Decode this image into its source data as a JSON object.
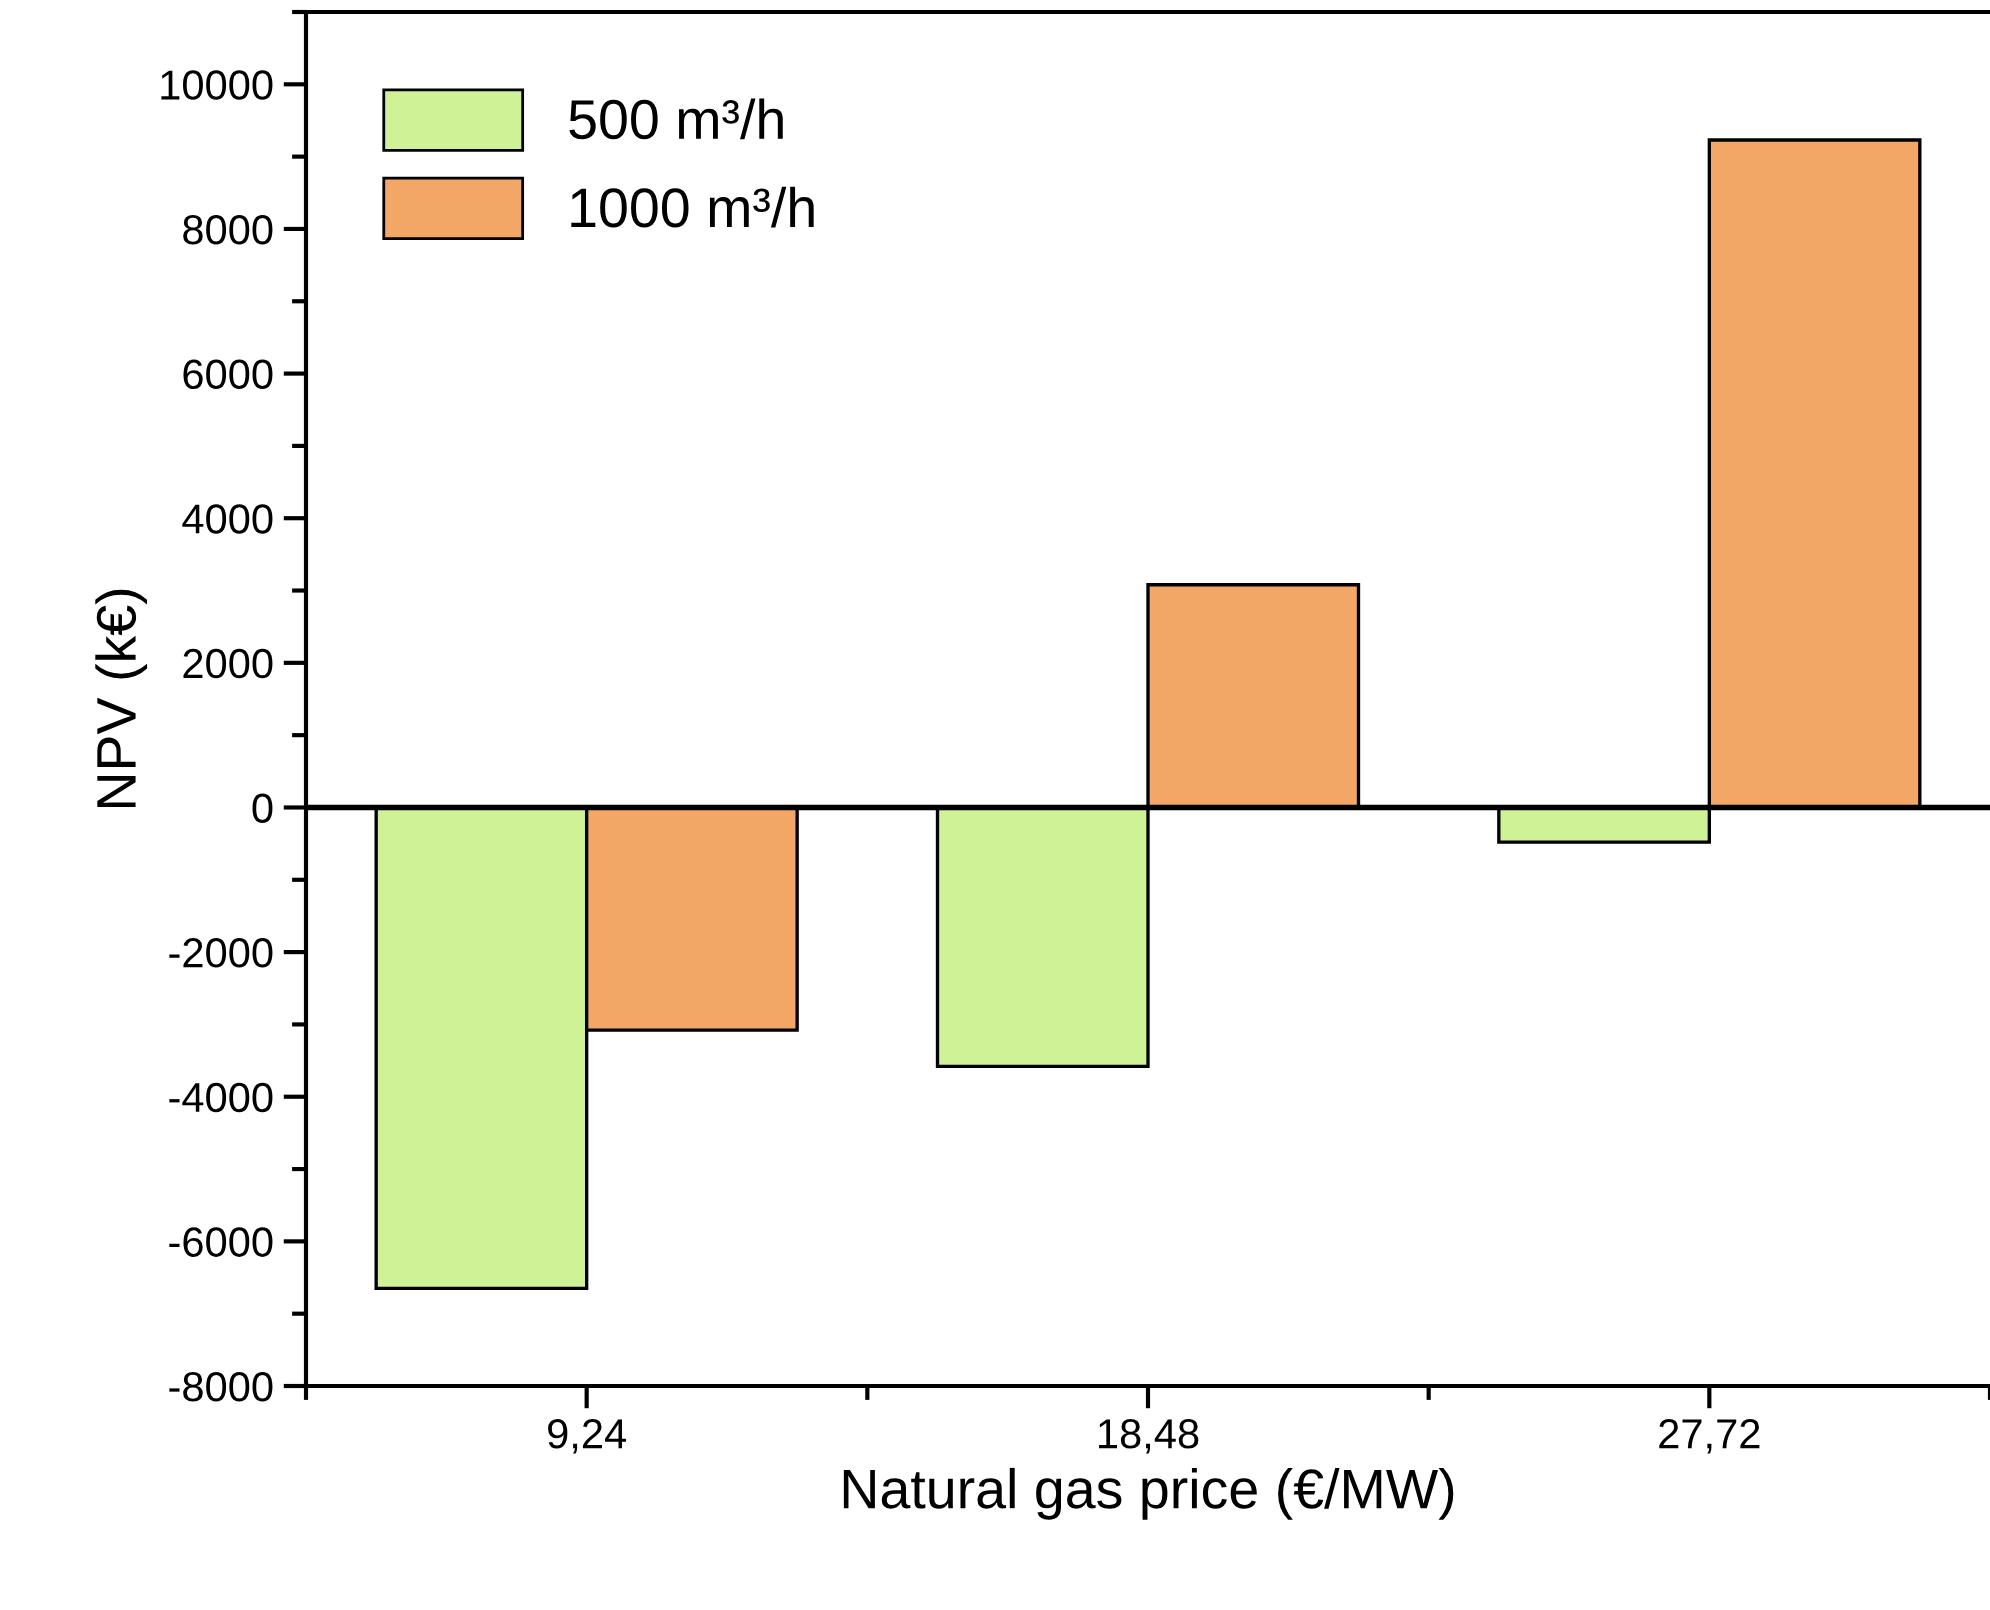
{
  "chart_data": {
    "type": "bar",
    "xlabel": "Natural gas price (€/MW)",
    "ylabel": "NPV (k€)",
    "categories": [
      "9,24",
      "18,48",
      "27,72"
    ],
    "series": [
      {
        "name": "500 m³/h",
        "color": "#cff296",
        "values": [
          -6650,
          -3580,
          -480
        ]
      },
      {
        "name": "1000 m³/h",
        "color": "#f3a766",
        "values": [
          -3080,
          3080,
          9230
        ]
      }
    ],
    "ylim": [
      -8000,
      11000
    ],
    "yticks": [
      -8000,
      -6000,
      -4000,
      -2000,
      0,
      2000,
      4000,
      6000,
      8000,
      10000
    ],
    "ref_lines": [
      {
        "axis": "y",
        "value": 0,
        "color": "#000000"
      }
    ],
    "grid": false,
    "legend": "top left"
  }
}
